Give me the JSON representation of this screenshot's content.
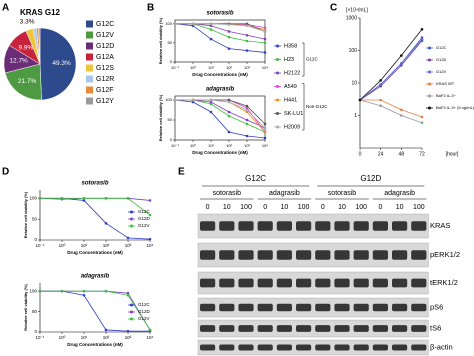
{
  "panel_labels": [
    "A",
    "B",
    "C",
    "D",
    "E"
  ],
  "chart_data": [
    {
      "type": "pie",
      "title": "KRAS G12",
      "categories": [
        "G12C",
        "G12V",
        "G12D",
        "G12A",
        "G12S",
        "G12R",
        "G12F",
        "G12Y"
      ],
      "values": [
        49.3,
        21.7,
        12.7,
        9.9,
        3.3,
        1.5,
        1.0,
        0.6
      ],
      "value_labels": [
        "49.3%",
        "21.7%",
        "12.7%",
        "9.9%",
        "3.3%",
        null,
        null,
        null
      ],
      "colors": [
        "#2c4a8c",
        "#4e9a43",
        "#6b2c77",
        "#c8233c",
        "#f0c43a",
        "#a9c8e8",
        "#e5893a",
        "#9a9a9a"
      ],
      "legend": "right"
    },
    {
      "type": "line",
      "title": "sotorasib",
      "y_label": "Relative cell viability (%)",
      "x_label": "Drug Concentrations (nM)",
      "xscale": "log",
      "x": [
        0.1,
        1,
        10,
        100,
        1000,
        10000
      ],
      "xlim": [
        0.1,
        10000
      ],
      "xticks": [
        {
          "value": 0.1,
          "label": "10⁻¹"
        },
        {
          "value": 1,
          "label": "10⁰"
        },
        {
          "value": 10,
          "label": "10¹"
        },
        {
          "value": 100,
          "label": "10²"
        },
        {
          "value": 1000,
          "label": "10³"
        },
        {
          "value": 10000,
          "label": "10⁴"
        }
      ],
      "ylim": [
        0,
        110
      ],
      "yticks": [
        0,
        50,
        100
      ],
      "legend": "outside",
      "legend_groups": [
        "G12C",
        "Non-G12C"
      ],
      "series": [
        {
          "name": "H358",
          "color": "#2f3fc0",
          "values": [
            100,
            95,
            60,
            35,
            30,
            25
          ]
        },
        {
          "name": "H23",
          "color": "#3fbf3f",
          "values": [
            100,
            100,
            85,
            65,
            55,
            50
          ]
        },
        {
          "name": "H2122",
          "color": "#7f3fbf",
          "values": [
            100,
            100,
            95,
            80,
            70,
            60
          ]
        },
        {
          "name": "A549",
          "color": "#e03fe0",
          "values": [
            100,
            100,
            100,
            100,
            98,
            90
          ]
        },
        {
          "name": "H441",
          "color": "#e0902f",
          "values": [
            100,
            100,
            100,
            100,
            95,
            85
          ]
        },
        {
          "name": "SK-LU1",
          "color": "#555555",
          "values": [
            100,
            100,
            100,
            100,
            100,
            80
          ]
        },
        {
          "name": "H2009",
          "color": "#aaaaaa",
          "values": [
            100,
            100,
            100,
            98,
            95,
            80
          ]
        }
      ]
    },
    {
      "type": "line",
      "title": "adagrasib",
      "y_label": "Relative cell viability (%)",
      "x_label": "Drug Concentrations (nM)",
      "xscale": "log",
      "x": [
        0.1,
        1,
        10,
        100,
        1000,
        10000
      ],
      "xlim": [
        0.1,
        10000
      ],
      "xticks": [
        {
          "value": 0.1,
          "label": "10⁻¹"
        },
        {
          "value": 1,
          "label": "10⁰"
        },
        {
          "value": 10,
          "label": "10¹"
        },
        {
          "value": 100,
          "label": "10²"
        },
        {
          "value": 1000,
          "label": "10³"
        },
        {
          "value": 10000,
          "label": "10⁴"
        }
      ],
      "ylim": [
        0,
        110
      ],
      "yticks": [
        0,
        50,
        100
      ],
      "series": [
        {
          "name": "H358",
          "color": "#2f3fc0",
          "values": [
            100,
            95,
            70,
            20,
            10,
            5
          ]
        },
        {
          "name": "H23",
          "color": "#3fbf3f",
          "values": [
            100,
            100,
            90,
            60,
            40,
            20
          ]
        },
        {
          "name": "H2122",
          "color": "#7f3fbf",
          "values": [
            100,
            100,
            95,
            70,
            50,
            30
          ]
        },
        {
          "name": "A549",
          "color": "#e03fe0",
          "values": [
            100,
            100,
            100,
            100,
            80,
            20
          ]
        },
        {
          "name": "H441",
          "color": "#e0902f",
          "values": [
            100,
            100,
            100,
            95,
            70,
            20
          ]
        },
        {
          "name": "SK-LU1",
          "color": "#555555",
          "values": [
            100,
            100,
            100,
            100,
            85,
            40
          ]
        },
        {
          "name": "H2009",
          "color": "#aaaaaa",
          "values": [
            100,
            100,
            100,
            95,
            75,
            30
          ]
        }
      ]
    },
    {
      "type": "line",
      "y_label": "[×10⁴/mL]",
      "x_label": "[hour]",
      "yscale": "log",
      "x": [
        0,
        24,
        48,
        72
      ],
      "xlim": [
        0,
        72
      ],
      "xticks": [
        0,
        24,
        48,
        72
      ],
      "ylim": [
        0.1,
        1000
      ],
      "yticks": [
        1,
        10,
        100,
        1000
      ],
      "legend": "outside",
      "series": [
        {
          "name": "G12C",
          "color": "#3a5fcd",
          "values": [
            3,
            9,
            40,
            250
          ]
        },
        {
          "name": "G12D",
          "color": "#7040a0",
          "values": [
            3,
            8,
            35,
            200
          ]
        },
        {
          "name": "G12V",
          "color": "#5a6ad8",
          "values": [
            3,
            9,
            40,
            220
          ]
        },
        {
          "name": "KRAS WT",
          "color": "#e08040",
          "values": [
            3,
            3,
            1.5,
            0.9
          ]
        },
        {
          "name": "BaF3 IL-3−",
          "color": "#999999",
          "values": [
            3,
            2,
            1,
            0.6
          ]
        },
        {
          "name": "BaF3 IL-3+ (5 ng/mL)",
          "color": "#111111",
          "values": [
            3,
            12,
            70,
            450
          ]
        }
      ]
    },
    {
      "type": "line",
      "title": "sotorasib",
      "y_label": "Relative cell viability (%)",
      "x_label": "Drug Concentrations (nM)",
      "xscale": "log",
      "x": [
        0.1,
        1,
        10,
        100,
        1000,
        10000
      ],
      "xlim": [
        0.1,
        10000
      ],
      "xticks": [
        {
          "value": 0.1,
          "label": "10⁻¹"
        },
        {
          "value": 1,
          "label": "10⁰"
        },
        {
          "value": 10,
          "label": "10¹"
        },
        {
          "value": 100,
          "label": "10²"
        },
        {
          "value": 1000,
          "label": "10³"
        },
        {
          "value": 10000,
          "label": "10⁴"
        }
      ],
      "ylim": [
        0,
        120
      ],
      "yticks": [
        0,
        50,
        100
      ],
      "legend": "inside",
      "series": [
        {
          "name": "G12C",
          "color": "#2f3fc0",
          "values": [
            100,
            100,
            95,
            40,
            5,
            2
          ]
        },
        {
          "name": "G12D",
          "color": "#7f3fbf",
          "values": [
            100,
            98,
            100,
            100,
            100,
            95
          ]
        },
        {
          "name": "G12V",
          "color": "#3fbf3f",
          "values": [
            100,
            100,
            100,
            100,
            100,
            60
          ]
        }
      ]
    },
    {
      "type": "line",
      "title": "adagrasib",
      "y_label": "Relative cell viability (%)",
      "x_label": "Drug Concentrations (nM)",
      "xscale": "log",
      "x": [
        0.1,
        1,
        10,
        100,
        1000,
        10000
      ],
      "xlim": [
        0.1,
        10000
      ],
      "xticks": [
        {
          "value": 0.1,
          "label": "10⁻¹"
        },
        {
          "value": 1,
          "label": "10⁰"
        },
        {
          "value": 10,
          "label": "10¹"
        },
        {
          "value": 100,
          "label": "10²"
        },
        {
          "value": 1000,
          "label": "10³"
        },
        {
          "value": 10000,
          "label": "10⁴"
        }
      ],
      "ylim": [
        0,
        120
      ],
      "yticks": [
        0,
        50,
        100
      ],
      "legend": "inside",
      "series": [
        {
          "name": "G12C",
          "color": "#2f3fc0",
          "values": [
            100,
            100,
            90,
            5,
            2,
            2
          ]
        },
        {
          "name": "G12D",
          "color": "#7f3fbf",
          "values": [
            100,
            100,
            100,
            100,
            95,
            5
          ]
        },
        {
          "name": "G12V",
          "color": "#3fbf3f",
          "values": [
            100,
            100,
            100,
            100,
            90,
            5
          ]
        }
      ]
    }
  ],
  "blot": {
    "groups": [
      "G12C",
      "G12D"
    ],
    "drugs": [
      "sotorasib",
      "adagrasib",
      "sotorasib",
      "adagrasib"
    ],
    "doses": [
      0,
      10,
      100,
      0,
      10,
      100,
      0,
      10,
      100,
      0,
      10,
      100
    ],
    "rows": [
      "KRAS",
      "pERK1/2",
      "tERK1/2",
      "pS6",
      "tS6",
      "β-actin"
    ]
  }
}
